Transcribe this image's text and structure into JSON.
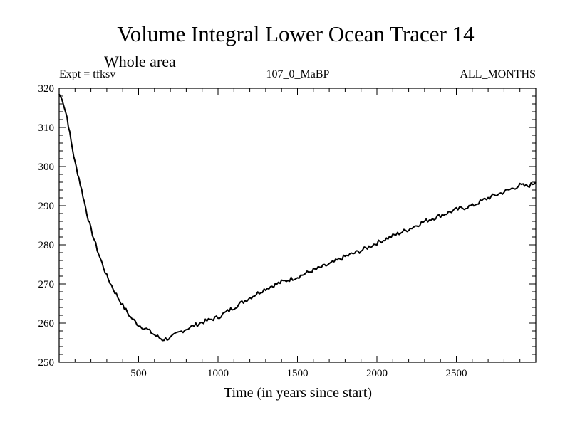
{
  "chart_data": {
    "type": "line",
    "title": "Volume Integral Lower Ocean Tracer 14",
    "subtitle": "Whole area",
    "left_annotation": "Expt = tfksv",
    "center_annotation": "107_0_MaBP",
    "right_annotation": "ALL_MONTHS",
    "xlabel": "Time (in years since start)",
    "ylabel": "",
    "xlim": [
      0,
      3000
    ],
    "ylim": [
      250,
      320
    ],
    "x_ticks": [
      500,
      1000,
      1500,
      2000,
      2500
    ],
    "y_ticks": [
      250,
      260,
      270,
      280,
      290,
      300,
      310,
      320
    ],
    "grid": false,
    "series": [
      {
        "name": "tfksv",
        "color": "#000000",
        "x": [
          0,
          25,
          50,
          75,
          100,
          125,
          150,
          175,
          200,
          250,
          300,
          350,
          400,
          450,
          500,
          550,
          600,
          650,
          700,
          750,
          800,
          900,
          1000,
          1100,
          1200,
          1300,
          1400,
          1500,
          1600,
          1700,
          1800,
          1900,
          2000,
          2100,
          2200,
          2300,
          2400,
          2500,
          2600,
          2700,
          2800,
          2900,
          2950,
          3000
        ],
        "values": [
          318.5,
          316.5,
          312.5,
          306.5,
          301,
          297,
          292.5,
          288,
          284,
          277.5,
          272,
          268,
          264.5,
          261.5,
          259.5,
          258.5,
          257,
          255.8,
          256.2,
          257.5,
          258.5,
          260.2,
          261.5,
          264,
          266.5,
          268.8,
          270.5,
          271.8,
          273.5,
          275,
          277,
          278.5,
          280.5,
          282.3,
          284,
          286,
          287.5,
          289,
          290,
          292,
          293.5,
          295.2,
          295,
          296
        ]
      }
    ]
  }
}
